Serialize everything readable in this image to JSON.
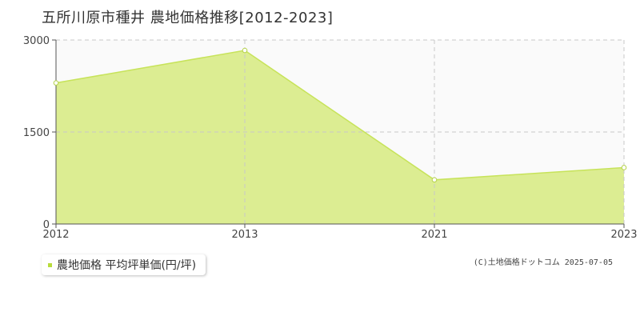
{
  "title": "五所川原市種井 農地価格推移[2012-2023]",
  "legend": {
    "label": "農地価格 平均坪単価(円/坪)"
  },
  "copyright": "(C)土地価格ドットコム 2025-07-05",
  "colors": {
    "area_fill": "#dced92",
    "line": "#c7e35a",
    "marker_stroke": "#b5d24a",
    "plot_background": "#fafafa",
    "grid": "#c8c8c8",
    "axis": "#555555"
  },
  "chart_data": {
    "type": "area",
    "title": "五所川原市種井 農地価格推移[2012-2023]",
    "xlabel": "",
    "ylabel": "",
    "x_ticks": [
      "2012",
      "2013",
      "2021",
      "2023"
    ],
    "y_ticks": [
      "0",
      "1500",
      "3000"
    ],
    "ylim": [
      0,
      3000
    ],
    "grid": true,
    "legend_position": "bottom-left",
    "series": [
      {
        "name": "農地価格 平均坪単価(円/坪)",
        "x": [
          2012,
          2013,
          2021,
          2023
        ],
        "values": [
          2300,
          2830,
          720,
          920
        ]
      }
    ]
  }
}
